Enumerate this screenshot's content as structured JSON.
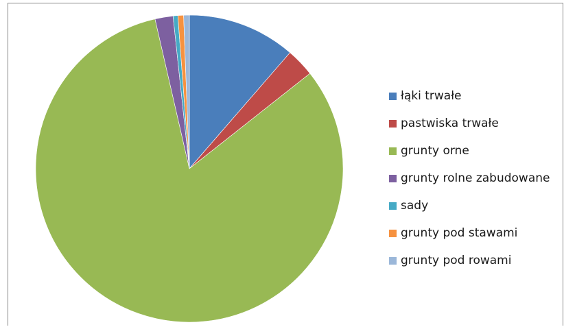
{
  "chart_data": {
    "type": "pie",
    "title": "",
    "legend_position": "right",
    "slices": [
      {
        "label": "łąki trwałe",
        "value": 11.4,
        "color": "#4A7EBB"
      },
      {
        "label": "pastwiska trwałe",
        "value": 3.0,
        "color": "#BE4B48"
      },
      {
        "label": "grunty orne",
        "value": 82.3,
        "color": "#98B954"
      },
      {
        "label": "grunty rolne zabudowane",
        "value": 1.9,
        "color": "#7D60A0"
      },
      {
        "label": "sady",
        "value": 0.5,
        "color": "#46AAC5"
      },
      {
        "label": "grunty pod stawami",
        "value": 0.6,
        "color": "#F69240"
      },
      {
        "label": "grunty pod rowami",
        "value": 0.6,
        "color": "#9BB7D9"
      }
    ]
  }
}
